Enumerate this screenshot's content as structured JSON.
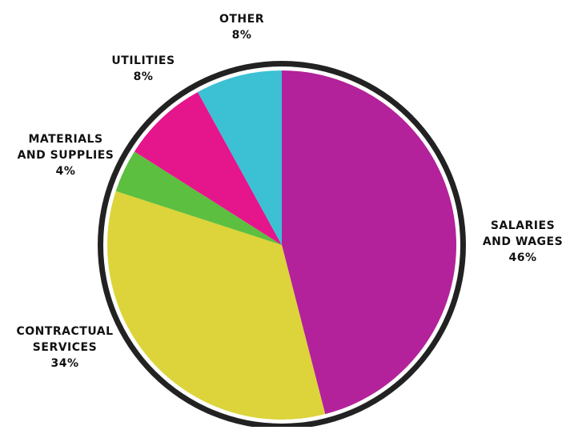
{
  "chart_data": {
    "type": "pie",
    "title": "",
    "slices": [
      {
        "label": "Salaries and Wages",
        "label_lines": [
          "SALARIES",
          "AND WAGES"
        ],
        "pct_text": "46%",
        "value": 46,
        "color": "#b3229a"
      },
      {
        "label": "Contractual Services",
        "label_lines": [
          "CONTRACTUAL",
          "SERVICES"
        ],
        "pct_text": "34%",
        "value": 34,
        "color": "#dcd43a"
      },
      {
        "label": "Materials and Supplies",
        "label_lines": [
          "MATERIALS",
          "AND SUPPLIES"
        ],
        "pct_text": "4%",
        "value": 4,
        "color": "#5cbf3f"
      },
      {
        "label": "Utilities",
        "label_lines": [
          "UTILITIES"
        ],
        "pct_text": "8%",
        "value": 8,
        "color": "#e5158c"
      },
      {
        "label": "Other",
        "label_lines": [
          "OTHER"
        ],
        "pct_text": "8%",
        "value": 8,
        "color": "#3cc0d4"
      }
    ],
    "ring_color": "#222222",
    "start": "12 o'clock",
    "direction": "clockwise"
  }
}
